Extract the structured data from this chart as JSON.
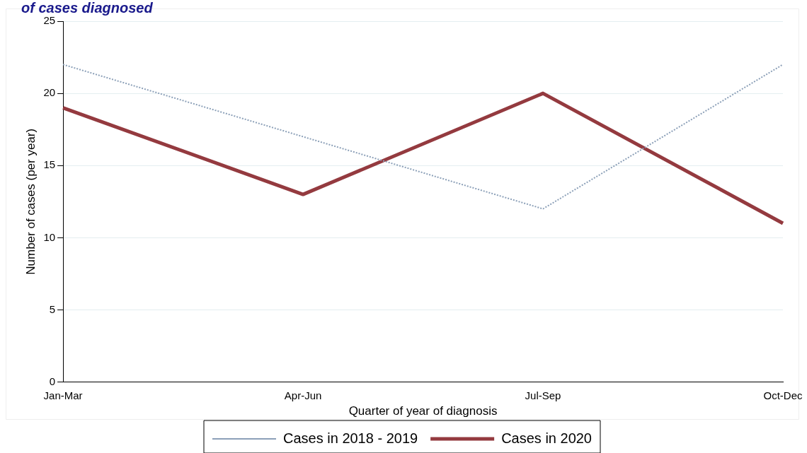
{
  "chart_data": {
    "type": "line",
    "title": "of cases diagnosed",
    "xlabel": "Quarter of year of diagnosis",
    "ylabel": "Number of cases (per year)",
    "categories": [
      "Jan-Mar",
      "Apr-Jun",
      "Jul-Sep",
      "Oct-Dec"
    ],
    "series": [
      {
        "name": "Cases in 2018 - 2019",
        "color": "#8ca0b8",
        "line_style": "dotted",
        "values": [
          22,
          17,
          12,
          22
        ]
      },
      {
        "name": "Cases in 2020",
        "color": "#943a3f",
        "line_style": "solid",
        "values": [
          19,
          13,
          20,
          11
        ]
      }
    ],
    "ylim": [
      0,
      25
    ],
    "yticks": [
      0,
      5,
      10,
      15,
      20,
      25
    ],
    "grid": "y",
    "legend": "bottom",
    "marker": "none"
  }
}
